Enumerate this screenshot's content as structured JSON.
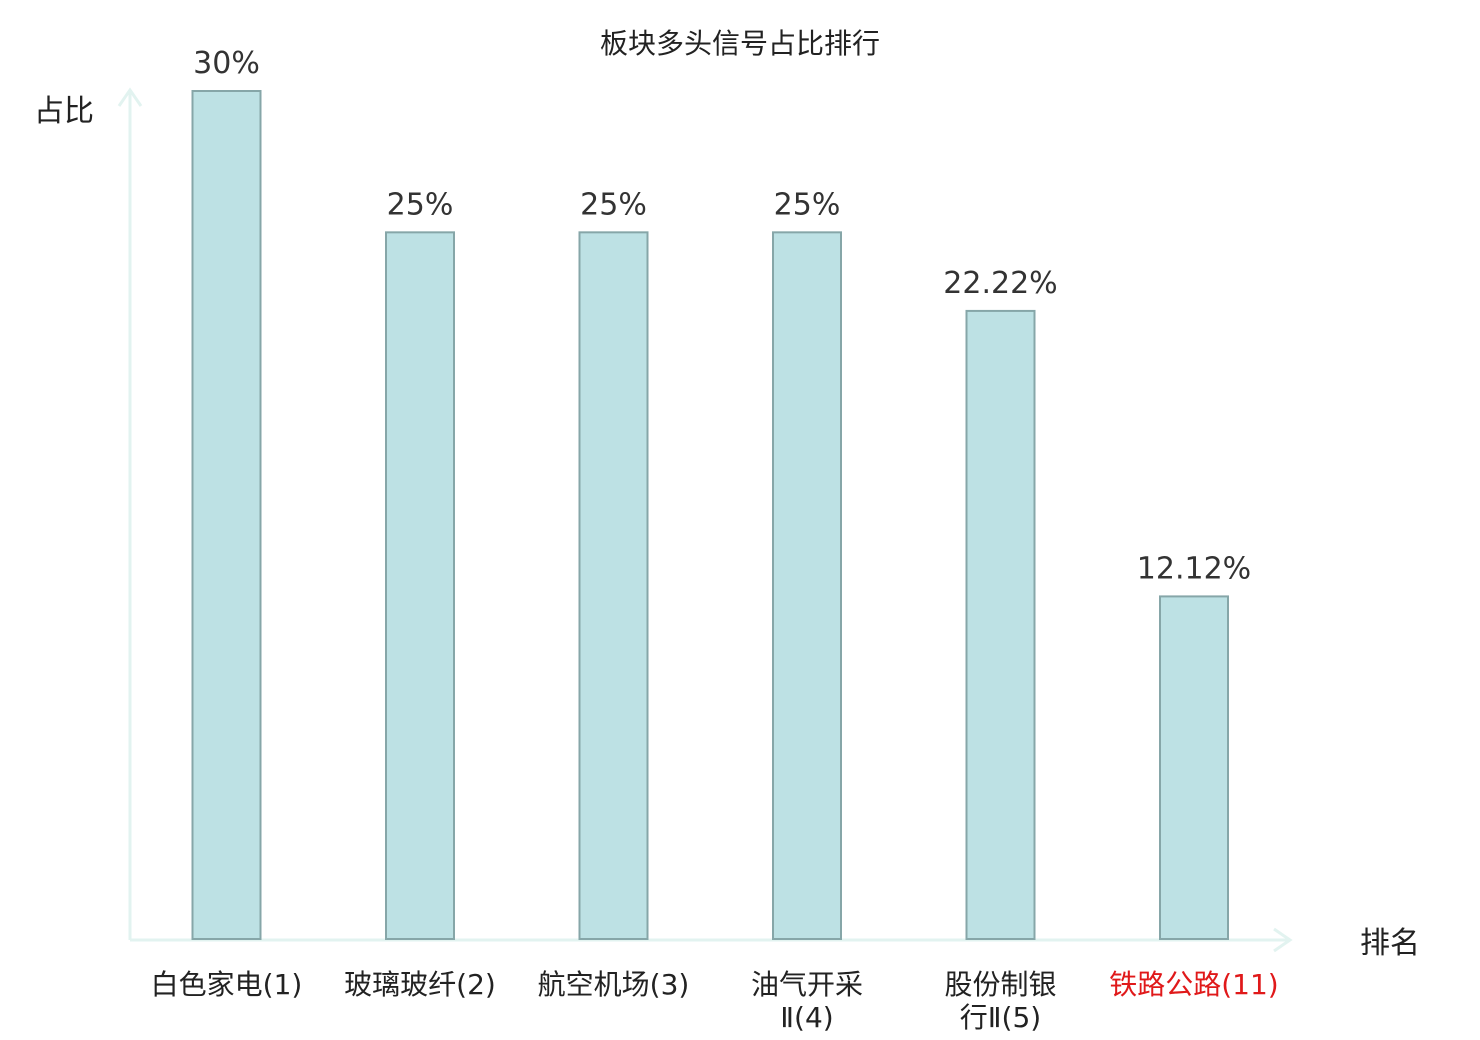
{
  "chart_data": {
    "type": "bar",
    "title": "板块多头信号占比排行",
    "ylabel": "占比",
    "xlabel": "排名",
    "categories": [
      [
        "白色家电(1)"
      ],
      [
        "玻璃玻纤(2)"
      ],
      [
        "航空机场(3)"
      ],
      [
        "油气开采",
        "Ⅱ(4)"
      ],
      [
        "股份制银",
        "行Ⅱ(5)"
      ],
      [
        "铁路公路(11)"
      ]
    ],
    "values": [
      30,
      25,
      25,
      25,
      22.22,
      12.12
    ],
    "value_labels": [
      "30%",
      "25%",
      "25%",
      "25%",
      "22.22%",
      "12.12%"
    ],
    "highlight_index": 5,
    "ylim": [
      0,
      30
    ],
    "grid": false,
    "colors": {
      "bar_fill": "#bde1e4",
      "bar_stroke": "#86a6a8",
      "axis": "#e2f3f0",
      "highlight": "#e0191a"
    }
  }
}
